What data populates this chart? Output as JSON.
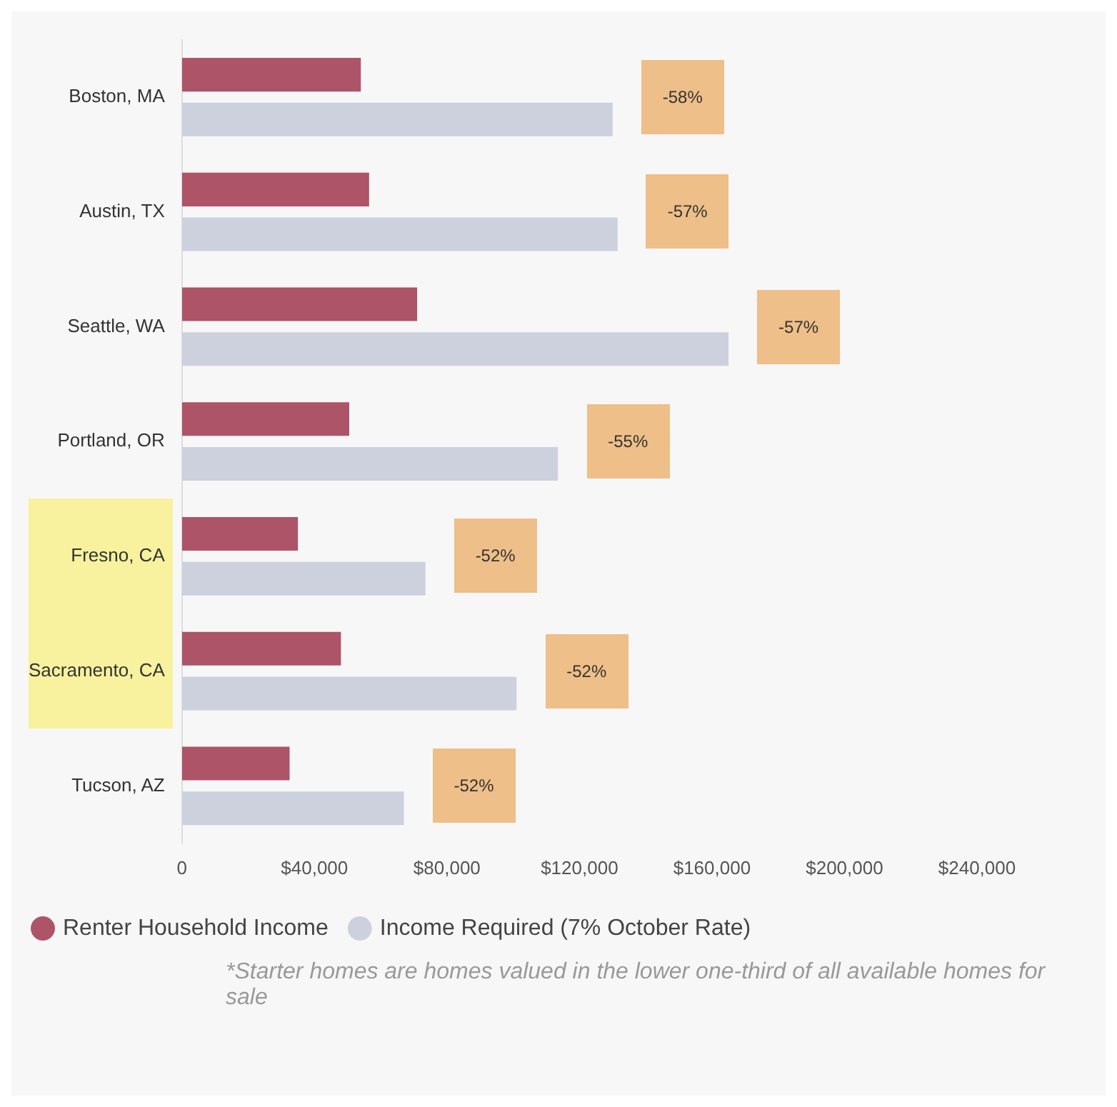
{
  "chart_data": {
    "type": "bar",
    "orientation": "horizontal",
    "categories": [
      "Boston, MA",
      "Austin, TX",
      "Seattle, WA",
      "Portland, OR",
      "Fresno, CA",
      "Sacramento, CA",
      "Tucson, AZ"
    ],
    "series": [
      {
        "name": "Renter Household Income",
        "color": "#ad5468",
        "values": [
          54000,
          56500,
          71000,
          50500,
          35000,
          48000,
          32500
        ]
      },
      {
        "name": "Income Required (7% October Rate)",
        "color": "#cdd1de",
        "values": [
          130000,
          131500,
          165000,
          113500,
          73500,
          101000,
          67000
        ]
      }
    ],
    "xlim": [
      0,
      240000
    ],
    "xticks": [
      {
        "value": 0,
        "label": "0"
      },
      {
        "value": 40000,
        "label": "$40,000"
      },
      {
        "value": 80000,
        "label": "$80,000"
      },
      {
        "value": 120000,
        "label": "$120,000"
      },
      {
        "value": 160000,
        "label": "$160,000"
      },
      {
        "value": 200000,
        "label": "$200,000"
      },
      {
        "value": 240000,
        "label": "$240,000"
      }
    ],
    "grid": false,
    "legend": "bottom",
    "annotations": [
      "-58%",
      "-57%",
      "-57%",
      "-55%",
      "-52%",
      "-52%",
      "-52%",
      "*Starter homes are homes valued in the lower one-third of all available homes for sale"
    ]
  }
}
